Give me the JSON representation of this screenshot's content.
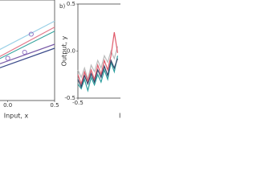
{
  "chart_data": [
    {
      "type": "line",
      "xlabel": "Input, x",
      "xlim": [
        -0.1,
        0.5
      ],
      "ylim": [
        0,
        1
      ],
      "xticks": [
        {
          "value": 0,
          "label": "0.0"
        },
        0.5
      ],
      "series": [
        {
          "color": "#9ad0e6",
          "x": [
            -0.1,
            0.5
          ],
          "values": [
            0.5,
            0.79
          ]
        },
        {
          "color": "#e27a8c",
          "x": [
            -0.1,
            0.5
          ],
          "values": [
            0.43,
            0.73
          ]
        },
        {
          "color": "#3aa6a0",
          "x": [
            -0.1,
            0.5
          ],
          "values": [
            0.41,
            0.69
          ]
        },
        {
          "color": "#7a5ca8",
          "x": [
            -0.1,
            0.5
          ],
          "values": [
            0.36,
            0.56
          ]
        },
        {
          "color": "#3a4a8a",
          "x": [
            -0.1,
            0.5
          ],
          "values": [
            0.32,
            0.52
          ]
        }
      ],
      "points": {
        "color": "#8a6ac0",
        "x": [
          0.0,
          0.18,
          0.25
        ],
        "values": [
          0.42,
          0.48,
          0.66
        ]
      }
    },
    {
      "type": "line",
      "panel_label": "b)",
      "xlabel": "Input, x",
      "ylabel": "Output, y",
      "xlim": [
        -0.5,
        0.5
      ],
      "ylim": [
        -0.5,
        0.5
      ],
      "xticks": [
        -0.5
      ],
      "yticks": [
        -0.5,
        {
          "value": 0,
          "label": "0.0"
        },
        0.5
      ],
      "series": [
        {
          "color": "#bbbbbb",
          "x": [
            -0.5,
            -0.46,
            -0.42,
            -0.38,
            -0.34,
            -0.3,
            -0.26,
            -0.22,
            -0.18,
            -0.14,
            -0.1,
            -0.06,
            -0.02
          ],
          "values": [
            -0.2,
            -0.28,
            -0.18,
            -0.3,
            -0.15,
            -0.22,
            -0.1,
            -0.18,
            -0.05,
            -0.12,
            0.0,
            -0.08,
            0.05
          ]
        },
        {
          "color": "#e05a6a",
          "x": [
            -0.5,
            -0.46,
            -0.42,
            -0.38,
            -0.34,
            -0.3,
            -0.26,
            -0.22,
            -0.18,
            -0.14,
            -0.1,
            -0.06,
            -0.02
          ],
          "values": [
            -0.25,
            -0.35,
            -0.22,
            -0.32,
            -0.2,
            -0.3,
            -0.15,
            -0.25,
            -0.1,
            -0.2,
            -0.05,
            0.2,
            -0.02
          ]
        },
        {
          "color": "#2a9d9d",
          "x": [
            -0.5,
            -0.46,
            -0.42,
            -0.38,
            -0.34,
            -0.3,
            -0.26,
            -0.22,
            -0.18,
            -0.14,
            -0.1,
            -0.06,
            -0.02
          ],
          "values": [
            -0.35,
            -0.4,
            -0.3,
            -0.42,
            -0.28,
            -0.36,
            -0.25,
            -0.33,
            -0.2,
            -0.3,
            -0.12,
            -0.22,
            -0.05
          ]
        },
        {
          "color": "#334466",
          "x": [
            -0.5,
            -0.46,
            -0.42,
            -0.38,
            -0.34,
            -0.3,
            -0.26,
            -0.22,
            -0.18,
            -0.14,
            -0.1,
            -0.06,
            -0.02
          ],
          "values": [
            -0.3,
            -0.38,
            -0.26,
            -0.35,
            -0.24,
            -0.33,
            -0.2,
            -0.28,
            -0.16,
            -0.26,
            -0.1,
            -0.18,
            -0.08
          ]
        }
      ]
    }
  ]
}
